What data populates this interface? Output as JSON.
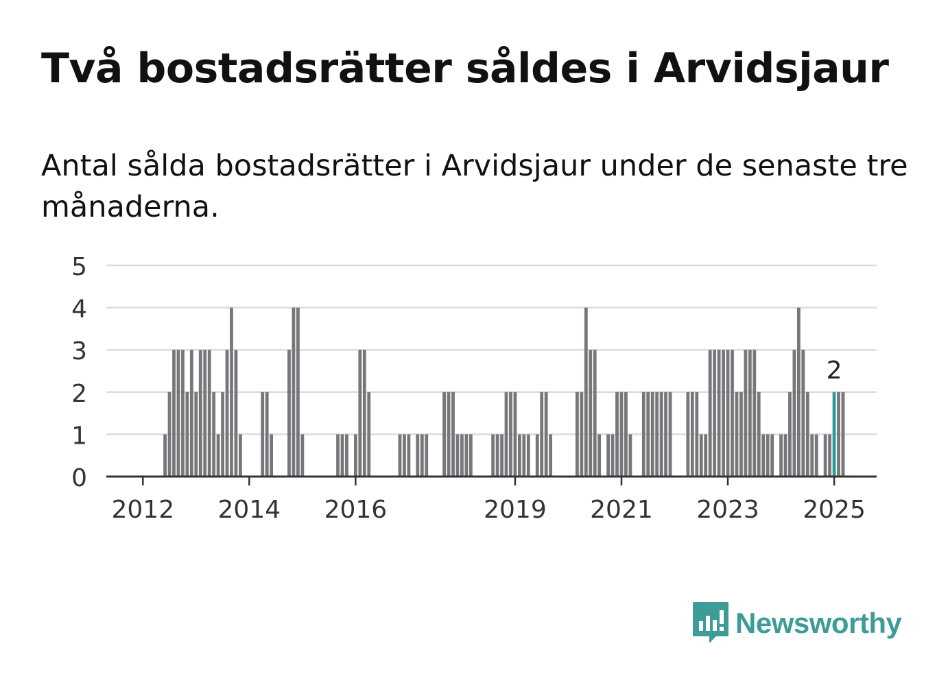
{
  "header": {
    "title": "Två bostadsrätter såldes i Arvidsjaur",
    "subtitle": "Antal sålda bostadsrätter i Arvidsjaur under de senaste tre månaderna."
  },
  "logo": {
    "text": "Newsworthy",
    "icon": "newsworthy-logo-icon",
    "color": "#3d9c98"
  },
  "chart_data": {
    "type": "bar",
    "title": "",
    "xlabel": "",
    "ylabel": "",
    "ylim": [
      0,
      5
    ],
    "yticks": [
      0,
      1,
      2,
      3,
      4,
      5
    ],
    "grid": true,
    "legend": "none",
    "bar_color": "#76767b",
    "highlight_color": "#2a9d98",
    "x_start": "2011-08",
    "x_end": "2025-03",
    "xticks": [
      {
        "label": "2012",
        "month": "2012-01"
      },
      {
        "label": "2014",
        "month": "2014-01"
      },
      {
        "label": "2016",
        "month": "2016-01"
      },
      {
        "label": "2019",
        "month": "2019-01"
      },
      {
        "label": "2021",
        "month": "2021-01"
      },
      {
        "label": "2023",
        "month": "2023-01"
      },
      {
        "label": "2025",
        "month": "2025-01"
      }
    ],
    "data_label": {
      "month": "2025-01",
      "text": "2"
    },
    "series": [
      {
        "highlight_month": "2025-01",
        "points": [
          [
            "2011-08",
            0
          ],
          [
            "2011-09",
            0
          ],
          [
            "2011-10",
            0
          ],
          [
            "2011-11",
            0
          ],
          [
            "2011-12",
            0
          ],
          [
            "2012-01",
            0
          ],
          [
            "2012-02",
            0
          ],
          [
            "2012-03",
            0
          ],
          [
            "2012-04",
            0
          ],
          [
            "2012-05",
            0
          ],
          [
            "2012-06",
            1
          ],
          [
            "2012-07",
            2
          ],
          [
            "2012-08",
            3
          ],
          [
            "2012-09",
            3
          ],
          [
            "2012-10",
            3
          ],
          [
            "2012-11",
            2
          ],
          [
            "2012-12",
            3
          ],
          [
            "2013-01",
            2
          ],
          [
            "2013-02",
            3
          ],
          [
            "2013-03",
            3
          ],
          [
            "2013-04",
            3
          ],
          [
            "2013-05",
            2
          ],
          [
            "2013-06",
            1
          ],
          [
            "2013-07",
            2
          ],
          [
            "2013-08",
            3
          ],
          [
            "2013-09",
            4
          ],
          [
            "2013-10",
            3
          ],
          [
            "2013-11",
            1
          ],
          [
            "2013-12",
            0
          ],
          [
            "2014-01",
            0
          ],
          [
            "2014-02",
            0
          ],
          [
            "2014-03",
            0
          ],
          [
            "2014-04",
            2
          ],
          [
            "2014-05",
            2
          ],
          [
            "2014-06",
            1
          ],
          [
            "2014-07",
            0
          ],
          [
            "2014-08",
            0
          ],
          [
            "2014-09",
            0
          ],
          [
            "2014-10",
            3
          ],
          [
            "2014-11",
            4
          ],
          [
            "2014-12",
            4
          ],
          [
            "2015-01",
            1
          ],
          [
            "2015-02",
            0
          ],
          [
            "2015-03",
            0
          ],
          [
            "2015-04",
            0
          ],
          [
            "2015-05",
            0
          ],
          [
            "2015-06",
            0
          ],
          [
            "2015-07",
            0
          ],
          [
            "2015-08",
            0
          ],
          [
            "2015-09",
            1
          ],
          [
            "2015-10",
            1
          ],
          [
            "2015-11",
            1
          ],
          [
            "2015-12",
            0
          ],
          [
            "2016-01",
            1
          ],
          [
            "2016-02",
            3
          ],
          [
            "2016-03",
            3
          ],
          [
            "2016-04",
            2
          ],
          [
            "2016-05",
            0
          ],
          [
            "2016-06",
            0
          ],
          [
            "2016-07",
            0
          ],
          [
            "2016-08",
            0
          ],
          [
            "2016-09",
            0
          ],
          [
            "2016-10",
            0
          ],
          [
            "2016-11",
            1
          ],
          [
            "2016-12",
            1
          ],
          [
            "2017-01",
            1
          ],
          [
            "2017-02",
            0
          ],
          [
            "2017-03",
            1
          ],
          [
            "2017-04",
            1
          ],
          [
            "2017-05",
            1
          ],
          [
            "2017-06",
            0
          ],
          [
            "2017-07",
            0
          ],
          [
            "2017-08",
            0
          ],
          [
            "2017-09",
            2
          ],
          [
            "2017-10",
            2
          ],
          [
            "2017-11",
            2
          ],
          [
            "2017-12",
            1
          ],
          [
            "2018-01",
            1
          ],
          [
            "2018-02",
            1
          ],
          [
            "2018-03",
            1
          ],
          [
            "2018-04",
            0
          ],
          [
            "2018-05",
            0
          ],
          [
            "2018-06",
            0
          ],
          [
            "2018-07",
            0
          ],
          [
            "2018-08",
            1
          ],
          [
            "2018-09",
            1
          ],
          [
            "2018-10",
            1
          ],
          [
            "2018-11",
            2
          ],
          [
            "2018-12",
            2
          ],
          [
            "2019-01",
            2
          ],
          [
            "2019-02",
            1
          ],
          [
            "2019-03",
            1
          ],
          [
            "2019-04",
            1
          ],
          [
            "2019-05",
            0
          ],
          [
            "2019-06",
            1
          ],
          [
            "2019-07",
            2
          ],
          [
            "2019-08",
            2
          ],
          [
            "2019-09",
            1
          ],
          [
            "2019-10",
            0
          ],
          [
            "2019-11",
            0
          ],
          [
            "2019-12",
            0
          ],
          [
            "2020-01",
            0
          ],
          [
            "2020-02",
            0
          ],
          [
            "2020-03",
            2
          ],
          [
            "2020-04",
            2
          ],
          [
            "2020-05",
            4
          ],
          [
            "2020-06",
            3
          ],
          [
            "2020-07",
            3
          ],
          [
            "2020-08",
            1
          ],
          [
            "2020-09",
            0
          ],
          [
            "2020-10",
            1
          ],
          [
            "2020-11",
            1
          ],
          [
            "2020-12",
            2
          ],
          [
            "2021-01",
            2
          ],
          [
            "2021-02",
            2
          ],
          [
            "2021-03",
            1
          ],
          [
            "2021-04",
            0
          ],
          [
            "2021-05",
            0
          ],
          [
            "2021-06",
            2
          ],
          [
            "2021-07",
            2
          ],
          [
            "2021-08",
            2
          ],
          [
            "2021-09",
            2
          ],
          [
            "2021-10",
            2
          ],
          [
            "2021-11",
            2
          ],
          [
            "2021-12",
            2
          ],
          [
            "2022-01",
            0
          ],
          [
            "2022-02",
            0
          ],
          [
            "2022-03",
            0
          ],
          [
            "2022-04",
            2
          ],
          [
            "2022-05",
            2
          ],
          [
            "2022-06",
            2
          ],
          [
            "2022-07",
            1
          ],
          [
            "2022-08",
            1
          ],
          [
            "2022-09",
            3
          ],
          [
            "2022-10",
            3
          ],
          [
            "2022-11",
            3
          ],
          [
            "2022-12",
            3
          ],
          [
            "2023-01",
            3
          ],
          [
            "2023-02",
            3
          ],
          [
            "2023-03",
            2
          ],
          [
            "2023-04",
            2
          ],
          [
            "2023-05",
            3
          ],
          [
            "2023-06",
            3
          ],
          [
            "2023-07",
            3
          ],
          [
            "2023-08",
            2
          ],
          [
            "2023-09",
            1
          ],
          [
            "2023-10",
            1
          ],
          [
            "2023-11",
            1
          ],
          [
            "2023-12",
            0
          ],
          [
            "2024-01",
            1
          ],
          [
            "2024-02",
            1
          ],
          [
            "2024-03",
            2
          ],
          [
            "2024-04",
            3
          ],
          [
            "2024-05",
            4
          ],
          [
            "2024-06",
            3
          ],
          [
            "2024-07",
            2
          ],
          [
            "2024-08",
            1
          ],
          [
            "2024-09",
            1
          ],
          [
            "2024-10",
            0
          ],
          [
            "2024-11",
            1
          ],
          [
            "2024-12",
            1
          ],
          [
            "2025-01",
            2
          ],
          [
            "2025-02",
            2
          ],
          [
            "2025-03",
            2
          ]
        ]
      }
    ]
  }
}
